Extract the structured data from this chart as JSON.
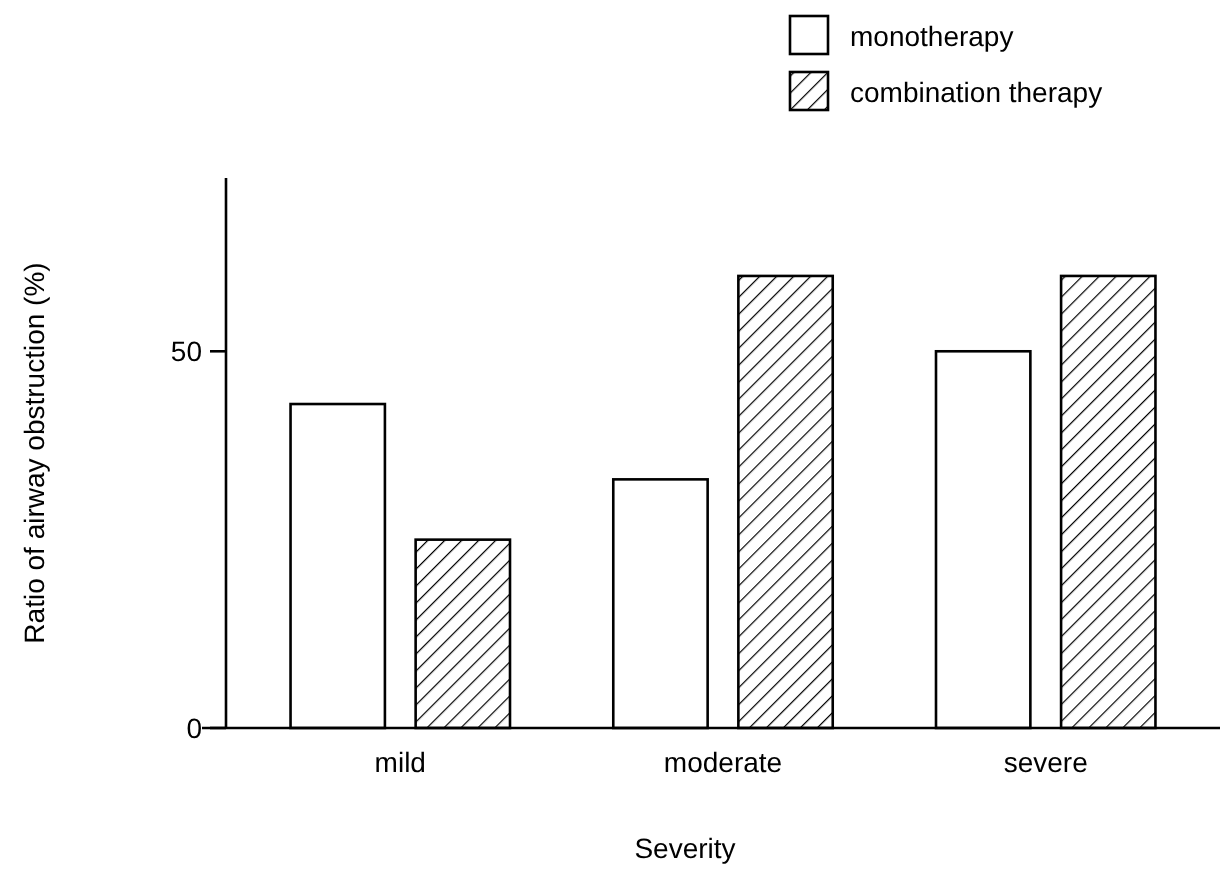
{
  "chart_data": {
    "type": "bar",
    "xlabel": "Severity",
    "ylabel": "Ratio of airway obstruction (%)",
    "categories": [
      "mild",
      "moderate",
      "severe"
    ],
    "series": [
      {
        "name": "monotherapy",
        "color": "#ffffff",
        "values": [
          43,
          33,
          50
        ]
      },
      {
        "name": "combination therapy",
        "color": "#000000",
        "values": [
          25,
          60,
          60
        ]
      }
    ],
    "ylim": [
      0,
      73
    ],
    "yticks": [
      0,
      50
    ],
    "grid": false,
    "legend": "top right"
  }
}
